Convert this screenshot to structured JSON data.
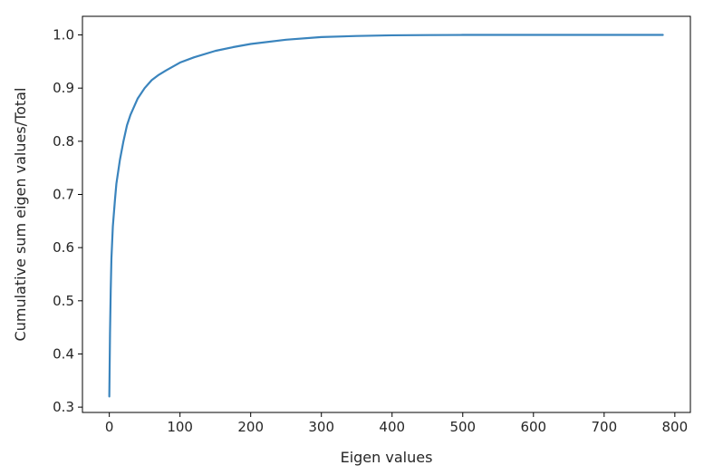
{
  "chart_data": {
    "type": "line",
    "title": "",
    "xlabel": "Eigen values",
    "ylabel": "Cumulative sum eigen values/Total",
    "xlim": [
      -38,
      822
    ],
    "ylim": [
      0.29,
      1.035
    ],
    "xticks": [
      0,
      100,
      200,
      300,
      400,
      500,
      600,
      700,
      800
    ],
    "yticks": [
      0.3,
      0.4,
      0.5,
      0.6,
      0.7,
      0.8,
      0.9,
      1.0
    ],
    "xtick_labels": [
      "0",
      "100",
      "200",
      "300",
      "400",
      "500",
      "600",
      "700",
      "800"
    ],
    "ytick_labels": [
      "0.3",
      "0.4",
      "0.5",
      "0.6",
      "0.7",
      "0.8",
      "0.9",
      "1.0"
    ],
    "grid": false,
    "legend": "none",
    "series": [
      {
        "color": "#3a84bd",
        "x": [
          0,
          1,
          2,
          3,
          5,
          8,
          10,
          15,
          20,
          25,
          30,
          40,
          50,
          60,
          70,
          80,
          100,
          120,
          150,
          175,
          200,
          250,
          300,
          350,
          400,
          450,
          500,
          600,
          700,
          783
        ],
        "y": [
          0.32,
          0.44,
          0.52,
          0.58,
          0.64,
          0.69,
          0.72,
          0.765,
          0.8,
          0.83,
          0.85,
          0.88,
          0.9,
          0.915,
          0.925,
          0.933,
          0.948,
          0.958,
          0.97,
          0.977,
          0.983,
          0.991,
          0.996,
          0.998,
          0.9993,
          0.9997,
          1.0,
          1.0,
          1.0,
          1.0
        ]
      }
    ]
  }
}
